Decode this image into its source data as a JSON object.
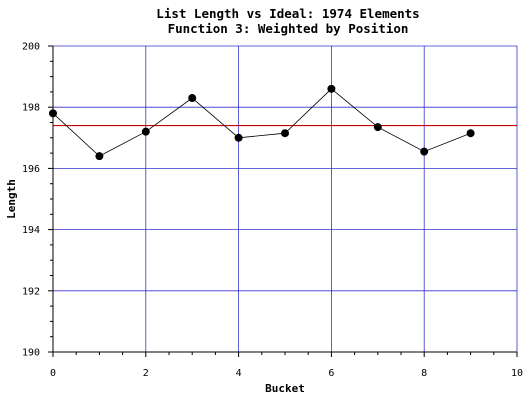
{
  "chart_data": {
    "type": "line",
    "title": "List Length vs Ideal: 1974 Elements",
    "subtitle": "Function 3: Weighted by Position",
    "xlabel": "Bucket",
    "ylabel": "Length",
    "xlim": [
      0,
      10
    ],
    "ylim": [
      190,
      200
    ],
    "x_ticks": [
      0,
      2,
      4,
      6,
      8,
      10
    ],
    "y_ticks": [
      190,
      192,
      194,
      196,
      198,
      200
    ],
    "grid": true,
    "series": [
      {
        "x": [
          0,
          1,
          2,
          3,
          4,
          5,
          6,
          7,
          8,
          9
        ],
        "values": [
          197.8,
          196.4,
          197.2,
          198.3,
          197.0,
          197.15,
          198.6,
          197.35,
          196.55,
          197.15
        ],
        "color": "#000000"
      }
    ],
    "reference_line": {
      "y": 197.4,
      "color": "#cc0000"
    },
    "grid_color": "#3333cc"
  }
}
